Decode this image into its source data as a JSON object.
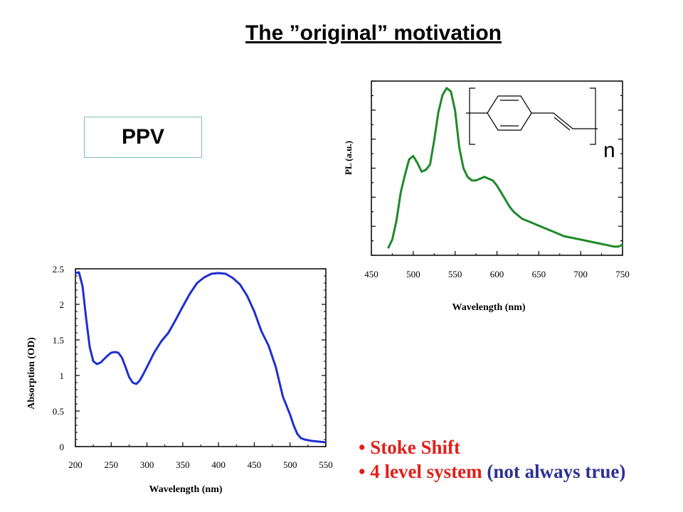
{
  "title": "The ”original” motivation",
  "ppv_label": "PPV",
  "structure_label": "n",
  "bullets": {
    "item1": "Stoke Shift",
    "item2_main": "4 level system",
    "item2_note": "(not always true)",
    "bullet_char": "•"
  },
  "colors": {
    "absorption_line": "#1f2fcf",
    "pl_line": "#1f8a2a",
    "bullet_red": "#e0201b",
    "bullet_blue": "#2e3192",
    "ppv_border": "#7fbfbf"
  },
  "chart_data": [
    {
      "type": "line",
      "title": "",
      "xlabel": "Wavelength (nm)",
      "ylabel": "Absorption (OD)",
      "xlim": [
        200,
        550
      ],
      "ylim": [
        0,
        2.5
      ],
      "xticks": [
        "200",
        "250",
        "300",
        "350",
        "400",
        "450",
        "500",
        "550"
      ],
      "yticks": [
        "0",
        "0.5",
        "1",
        "1.5",
        "2",
        "2.5"
      ],
      "grid": false,
      "series": [
        {
          "x": [
            200,
            205,
            210,
            215,
            220,
            225,
            230,
            235,
            240,
            245,
            250,
            255,
            260,
            265,
            270,
            275,
            280,
            285,
            290,
            295,
            300,
            310,
            320,
            330,
            340,
            350,
            360,
            370,
            380,
            390,
            400,
            410,
            420,
            430,
            440,
            450,
            460,
            470,
            480,
            490,
            500,
            505,
            510,
            515,
            520,
            525,
            530,
            540,
            550
          ],
          "y": [
            2.44,
            2.45,
            2.25,
            1.8,
            1.4,
            1.2,
            1.16,
            1.18,
            1.23,
            1.28,
            1.32,
            1.33,
            1.32,
            1.25,
            1.12,
            0.98,
            0.9,
            0.88,
            0.93,
            1.02,
            1.12,
            1.32,
            1.48,
            1.6,
            1.78,
            1.97,
            2.15,
            2.3,
            2.38,
            2.43,
            2.44,
            2.43,
            2.37,
            2.28,
            2.12,
            1.9,
            1.62,
            1.42,
            1.12,
            0.7,
            0.45,
            0.3,
            0.18,
            0.12,
            0.1,
            0.09,
            0.08,
            0.07,
            0.06
          ]
        }
      ]
    },
    {
      "type": "line",
      "title": "",
      "xlabel": "Wavelength (nm)",
      "ylabel": "PL (a.u.)",
      "xlim": [
        450,
        750
      ],
      "ylim": [
        0,
        1
      ],
      "xticks": [
        "450",
        "500",
        "550",
        "600",
        "650",
        "700",
        "750"
      ],
      "yticks": [],
      "grid": false,
      "series": [
        {
          "x": [
            470,
            475,
            480,
            485,
            490,
            495,
            500,
            505,
            510,
            515,
            520,
            525,
            530,
            535,
            540,
            545,
            550,
            555,
            560,
            565,
            570,
            575,
            580,
            585,
            590,
            595,
            600,
            605,
            610,
            615,
            620,
            630,
            640,
            650,
            660,
            670,
            680,
            690,
            700,
            710,
            720,
            730,
            740,
            745,
            750
          ],
          "y": [
            0.04,
            0.09,
            0.2,
            0.36,
            0.46,
            0.55,
            0.57,
            0.53,
            0.48,
            0.49,
            0.52,
            0.66,
            0.82,
            0.92,
            0.96,
            0.94,
            0.83,
            0.62,
            0.5,
            0.45,
            0.43,
            0.43,
            0.44,
            0.45,
            0.44,
            0.43,
            0.4,
            0.36,
            0.32,
            0.28,
            0.25,
            0.21,
            0.19,
            0.17,
            0.15,
            0.13,
            0.11,
            0.1,
            0.09,
            0.08,
            0.07,
            0.06,
            0.05,
            0.05,
            0.06
          ]
        }
      ]
    }
  ]
}
